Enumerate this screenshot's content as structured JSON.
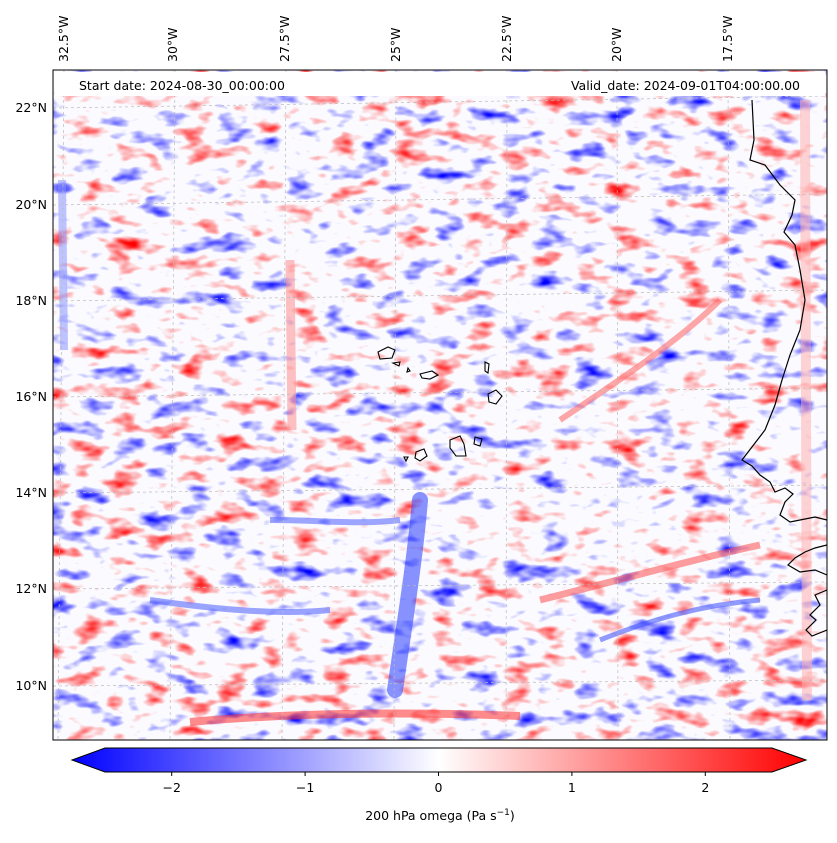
{
  "map": {
    "start_date": "Start date: 2024-08-30_00:00:00",
    "valid_date": "Valid_date: 2024-09-01T04:00:00.00",
    "lon_labels": [
      "32.5°W",
      "30°W",
      "27.5°W",
      "25°W",
      "22.5°W",
      "20°W",
      "17.5°W"
    ],
    "lat_labels": [
      "22°N",
      "20°N",
      "18°N",
      "16°N",
      "14°N",
      "12°N",
      "10°N"
    ],
    "field_colors": {
      "negative": "#0000ff",
      "zero": "#ffffff",
      "positive": "#ff0000"
    }
  },
  "colorbar": {
    "label_prefix": "200 hPa omega (Pa s",
    "label_exp": "−1",
    "label_suffix": ")",
    "ticks": [
      "−2",
      "−1",
      "0",
      "1",
      "2"
    ],
    "tick_values": [
      -2,
      -1,
      0,
      1,
      2
    ],
    "vmin": -2.5,
    "vmax": 2.5
  }
}
